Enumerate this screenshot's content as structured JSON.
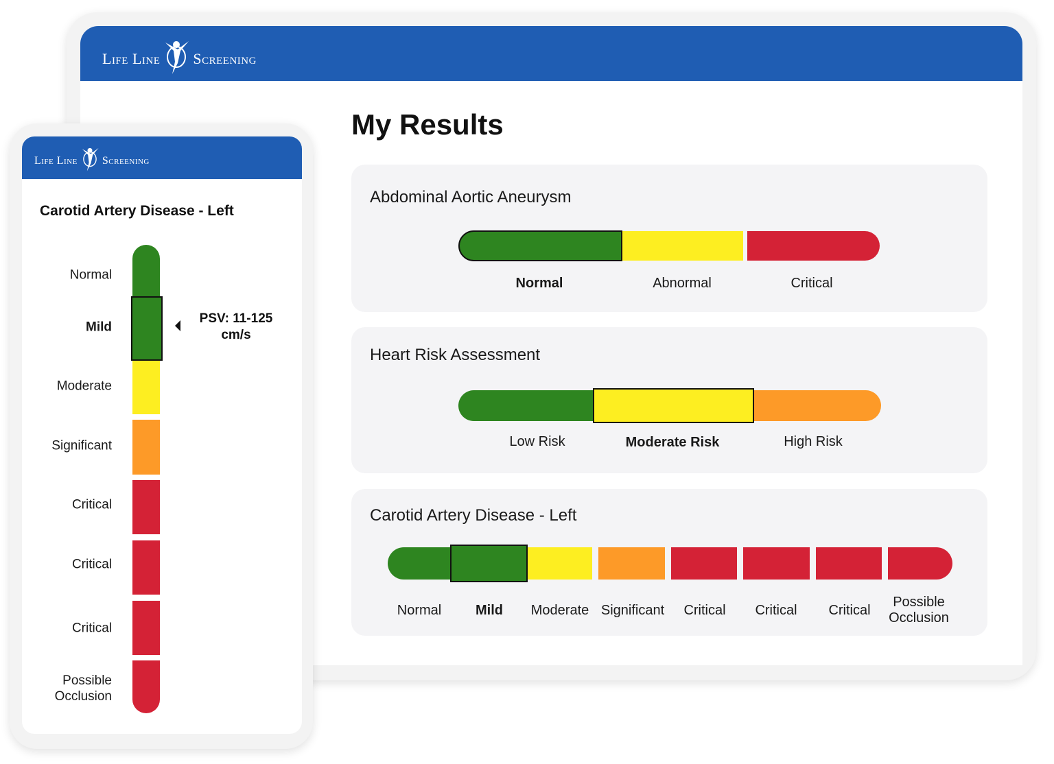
{
  "brand": {
    "logo_text_left": "Life Line",
    "logo_text_right": "Screening",
    "color": "#1f5db3"
  },
  "colors": {
    "green": "#2e8520",
    "yellow": "#fdee21",
    "orange": "#fd9a28",
    "red": "#d42236"
  },
  "desktop": {
    "page_title": "My Results",
    "cards": [
      {
        "title": "Abdominal Aortic Aneurysm",
        "levels": [
          "Normal",
          "Abnormal",
          "Critical"
        ],
        "selected": "Normal"
      },
      {
        "title": "Heart Risk Assessment",
        "levels": [
          "Low Risk",
          "Moderate Risk",
          "High Risk"
        ],
        "selected": "Moderate Risk"
      },
      {
        "title": "Carotid Artery Disease - Left",
        "levels": [
          "Normal",
          "Mild",
          "Moderate",
          "Significant",
          "Critical",
          "Critical",
          "Critical",
          "Possible Occlusion"
        ],
        "selected": "Mild"
      }
    ]
  },
  "mobile": {
    "title": "Carotid Artery Disease - Left",
    "levels": [
      "Normal",
      "Mild",
      "Moderate",
      "Significant",
      "Critical",
      "Critical",
      "Critical",
      "Possible Occlusion"
    ],
    "selected": "Mild",
    "reading_line1": "PSV: 11-125",
    "reading_line2": "cm/s"
  }
}
